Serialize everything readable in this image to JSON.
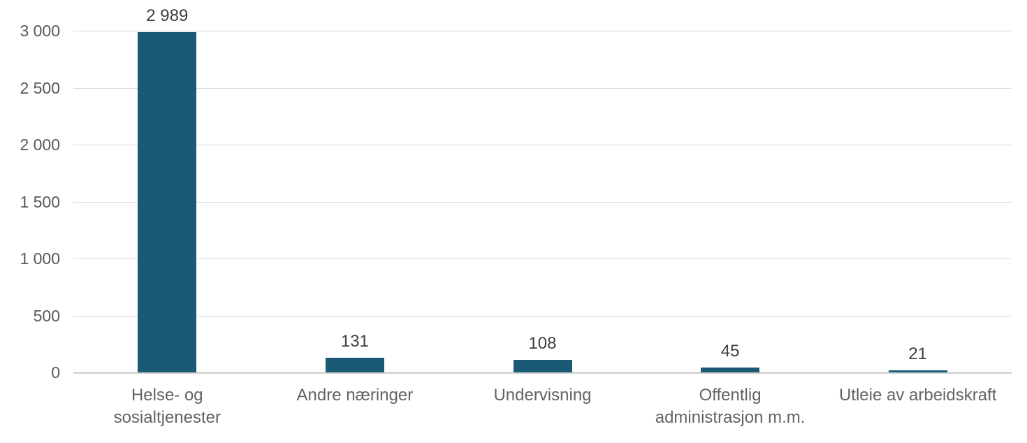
{
  "chart_data": {
    "type": "bar",
    "title": "",
    "xlabel": "",
    "ylabel": "",
    "categories": [
      "Helse- og sosialtjenester",
      "Andre næringer",
      "Undervisning",
      "Offentlig administrasjon m.m.",
      "Utleie av arbeidskraft"
    ],
    "category_lines": [
      [
        "Helse- og",
        "sosialtjenester"
      ],
      [
        "Andre næringer"
      ],
      [
        "Undervisning"
      ],
      [
        "Offentlig",
        "administrasjon m.m."
      ],
      [
        "Utleie av arbeidskraft"
      ]
    ],
    "values": [
      2989,
      131,
      108,
      45,
      21
    ],
    "value_labels": [
      "2 989",
      "131",
      "108",
      "45",
      "21"
    ],
    "ylim": [
      0,
      3000
    ],
    "ytick_interval": 500,
    "ytick_labels": [
      "0",
      "500",
      "1 000",
      "1 500",
      "2 000",
      "2 500",
      "3 000"
    ],
    "grid": true,
    "legend": false
  },
  "colors": {
    "bar": "#1A5A74",
    "gridline": "#D9D9D9",
    "zero_line": "#D6D6D6",
    "value_text": "#3F3F3F",
    "axis_text": "#58595B",
    "category_text": "#636363",
    "background": "#FFFFFF"
  }
}
